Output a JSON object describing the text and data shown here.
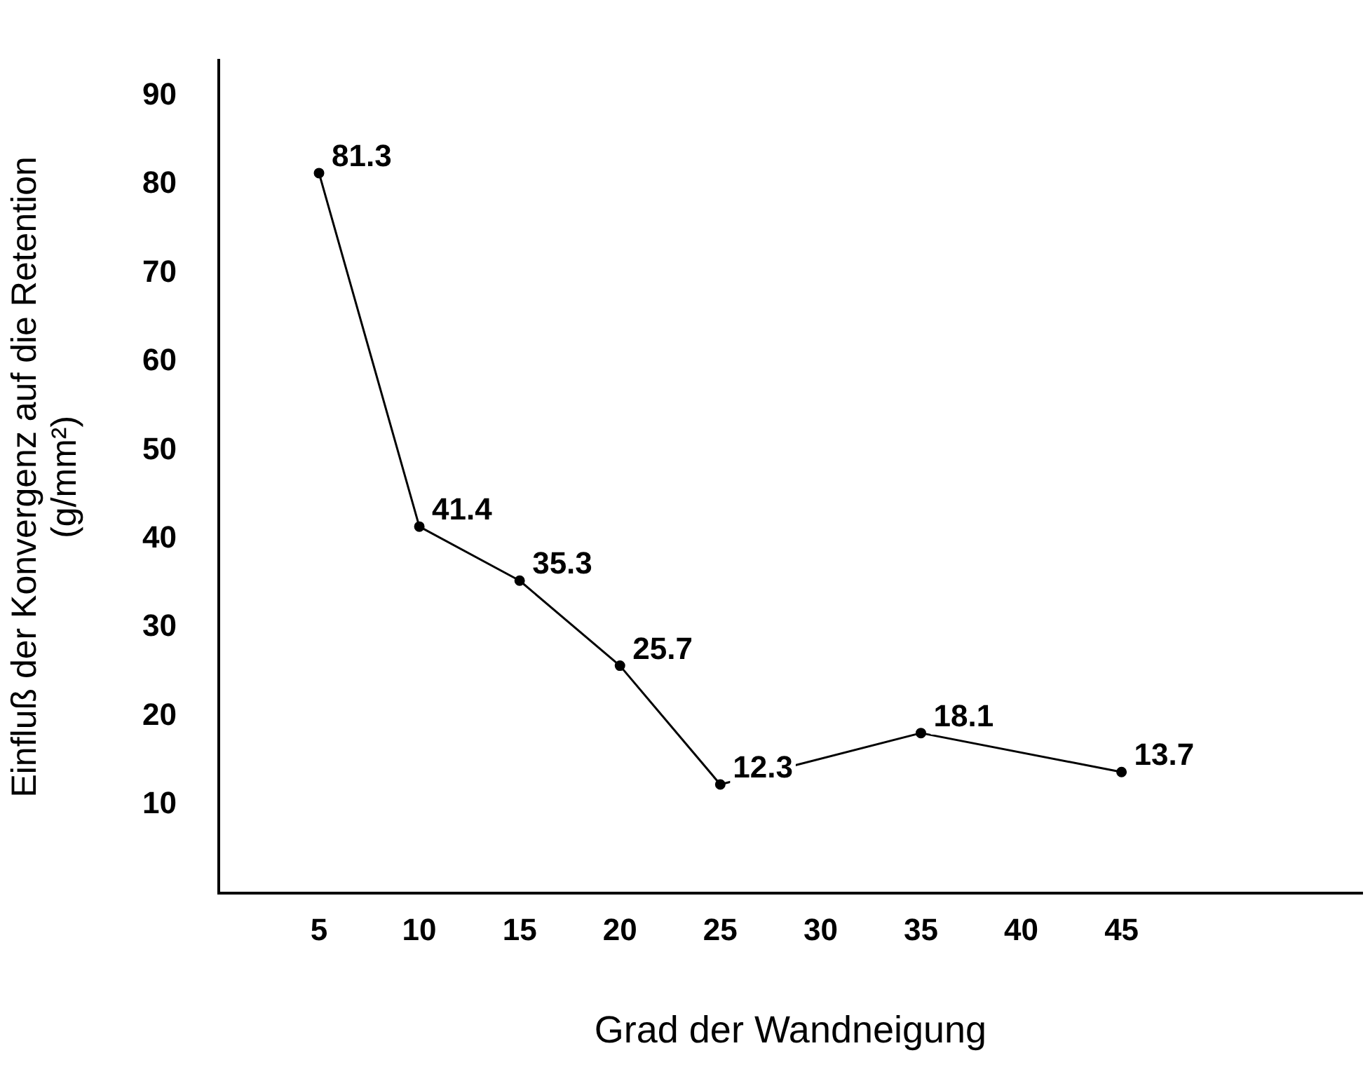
{
  "chart_data": {
    "type": "line",
    "xlabel": "Grad der Wandneigung",
    "ylabel": "Einfluß der Konvergenz auf die Retention\n(g/mm²)",
    "x": [
      5,
      10,
      15,
      20,
      25,
      35,
      45
    ],
    "values": [
      81.3,
      41.4,
      35.3,
      25.7,
      12.3,
      18.1,
      13.7
    ],
    "value_labels": [
      "81.3",
      "41.4",
      "35.3",
      "25.7",
      "12.3",
      "18.1",
      "13.7"
    ],
    "color": "#000000",
    "marker": "circle",
    "line_style": "solid",
    "grid": false,
    "legend": false,
    "xlim": [
      0,
      57
    ],
    "xticks": [
      5,
      10,
      15,
      20,
      25,
      30,
      35,
      40,
      45
    ],
    "ylim": [
      0,
      94
    ],
    "yticks": [
      10,
      20,
      30,
      40,
      50,
      60,
      70,
      80,
      90
    ]
  }
}
